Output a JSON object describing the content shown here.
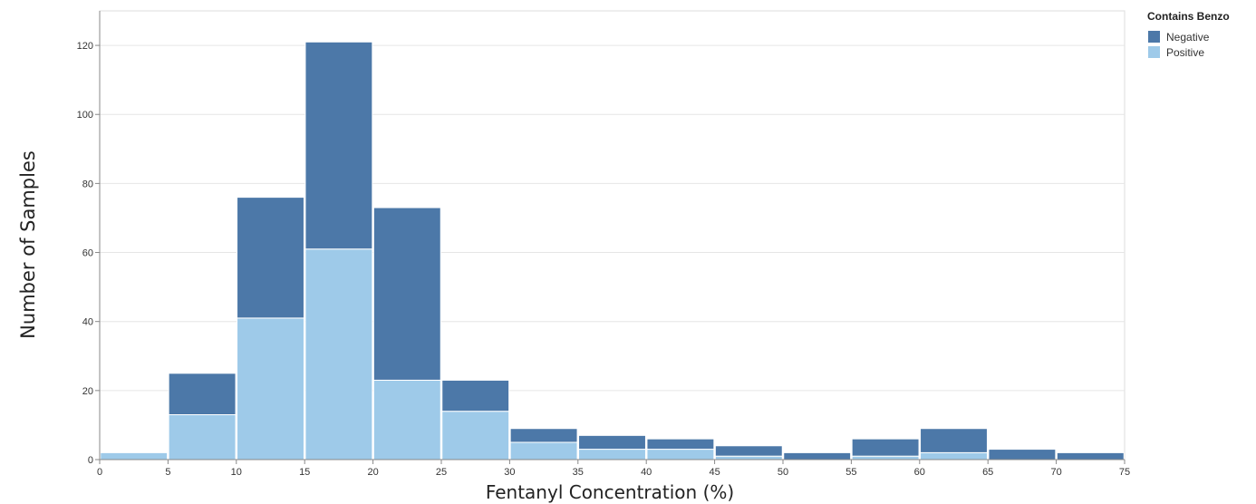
{
  "chart_data": {
    "type": "bar",
    "stacked": true,
    "xlabel": "Fentanyl Concentration (%)",
    "ylabel": "Number of Samples",
    "bin_edges": [
      0,
      5,
      10,
      15,
      20,
      25,
      30,
      35,
      40,
      45,
      50,
      55,
      60,
      65,
      70,
      75
    ],
    "x_ticks": [
      0,
      5,
      10,
      15,
      20,
      25,
      30,
      35,
      40,
      45,
      50,
      55,
      60,
      65,
      70,
      75
    ],
    "y_ticks": [
      0,
      20,
      40,
      60,
      80,
      100,
      120
    ],
    "y_tick_labels": [
      "0",
      "20",
      "40",
      "60",
      "80",
      "100",
      "120"
    ],
    "xlim": [
      0,
      75
    ],
    "ylim": [
      0,
      130
    ],
    "grid": true,
    "legend": {
      "title": "Contains Benzo",
      "position": "top-right"
    },
    "series": [
      {
        "name": "Positive",
        "color": "#9ecae9",
        "values": [
          2,
          13,
          41,
          61,
          23,
          14,
          5,
          3,
          3,
          1,
          0,
          1,
          2,
          0,
          0
        ]
      },
      {
        "name": "Negative",
        "color": "#4c78a8",
        "values": [
          0,
          12,
          35,
          60,
          50,
          9,
          4,
          4,
          3,
          3,
          2,
          5,
          7,
          3,
          2
        ]
      }
    ],
    "legend_order": [
      "Negative",
      "Positive"
    ]
  }
}
